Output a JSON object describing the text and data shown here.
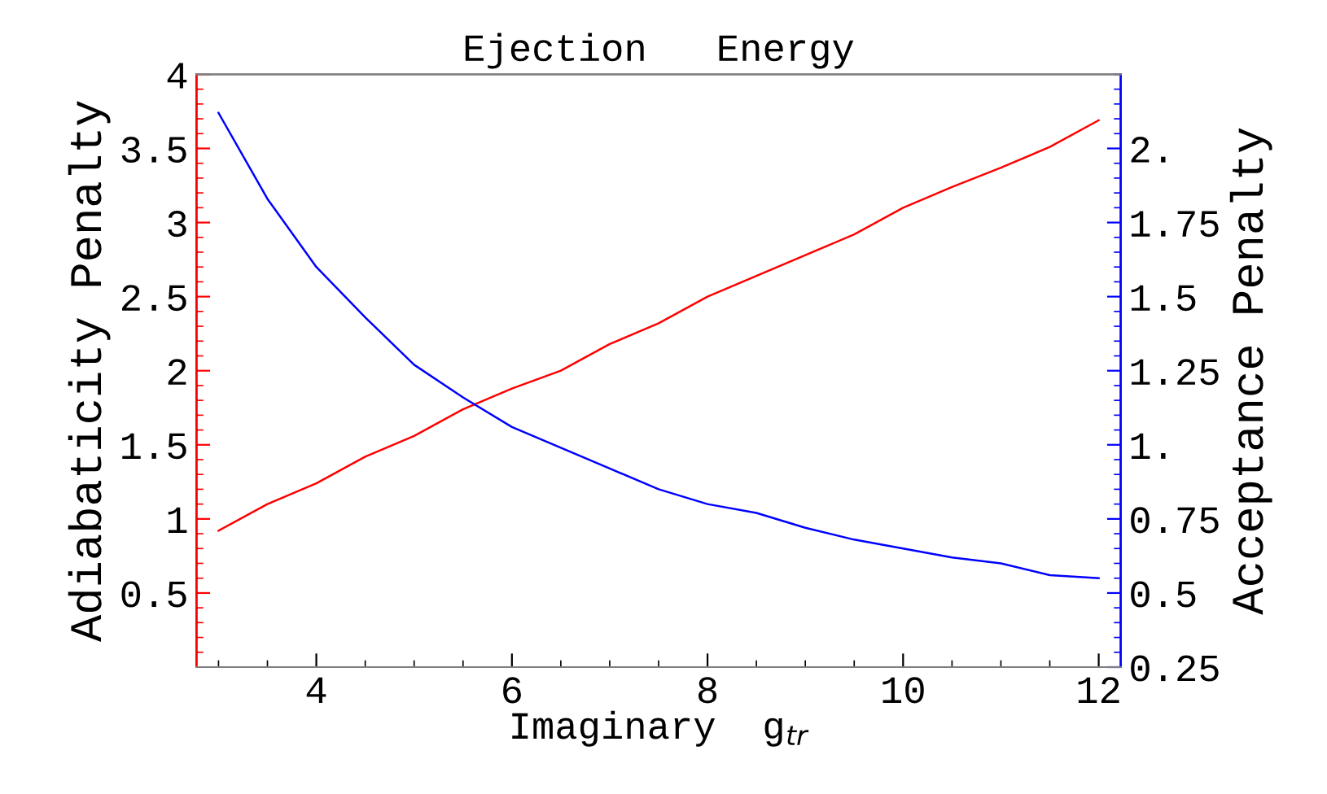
{
  "chart_data": {
    "type": "line",
    "title": "Ejection   Energy",
    "xlabel": "Imaginary  g$_{tr}$",
    "ylabel": "Adiabaticity Penalty",
    "y2label": "Acceptance Penalty",
    "x": [
      3,
      3.5,
      4,
      4.5,
      5,
      5.5,
      6,
      6.5,
      7,
      7.5,
      8,
      8.5,
      9,
      9.5,
      10,
      10.5,
      11,
      11.5,
      12
    ],
    "series": [
      {
        "color": "#ff0000",
        "values": [
          0.92,
          1.1,
          1.24,
          1.42,
          1.56,
          1.74,
          1.88,
          2.0,
          2.18,
          2.32,
          2.5,
          2.64,
          2.78,
          2.92,
          3.1,
          3.24,
          3.37,
          3.51,
          3.69
        ]
      },
      {
        "color": "#0000ff",
        "axis": "y2",
        "values": [
          2.12,
          1.83,
          1.6,
          1.43,
          1.27,
          1.16,
          1.06,
          0.99,
          0.92,
          0.85,
          0.8,
          0.77,
          0.72,
          0.68,
          0.65,
          0.62,
          0.6,
          0.56,
          0.55
        ]
      }
    ],
    "xlim": [
      2.775,
      12.225
    ],
    "xticks": [
      4,
      6,
      8,
      10,
      12
    ],
    "ylim": [
      0,
      4
    ],
    "yticks": [
      0.5,
      1,
      1.5,
      2,
      2.5,
      3,
      3.5,
      4
    ],
    "y2lim": [
      0.25,
      2.25
    ],
    "y2ticks": [
      0.25,
      0.5,
      0.75,
      {
        "value": 1,
        "label": "1."
      },
      1.25,
      1.5,
      1.75,
      {
        "value": 2,
        "label": "2."
      }
    ],
    "grid": false,
    "marker": "none",
    "line_style": "solid"
  }
}
